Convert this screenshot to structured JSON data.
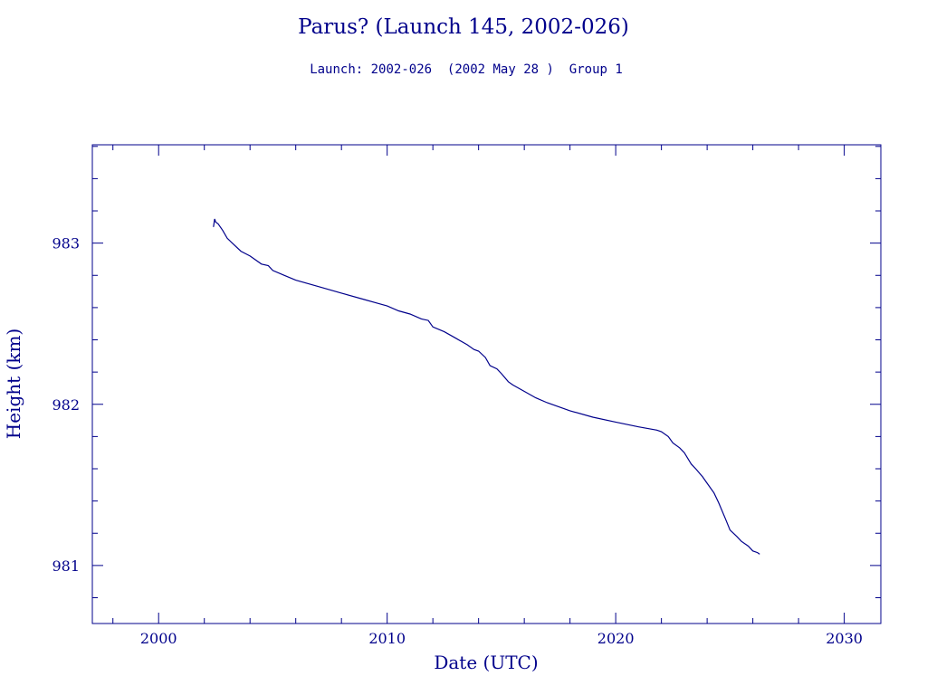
{
  "chart_data": {
    "type": "line",
    "title": "Parus? (Launch 145, 2002-026)",
    "subtitle": "Launch: 2002-026  (2002 May 28 )  Group 1",
    "xlabel": "Date (UTC)",
    "ylabel": "Height (km)",
    "xlim": [
      1997.1,
      2031.6
    ],
    "ylim": [
      980.64,
      983.61
    ],
    "x_ticks": [
      2000,
      2010,
      2020,
      2030
    ],
    "x_tick_labels": [
      "2000",
      "2010",
      "2020",
      "2030"
    ],
    "y_ticks": [
      981,
      982,
      983
    ],
    "y_tick_labels": [
      "981",
      "982",
      "983"
    ],
    "grid": false,
    "line_color": "#00008b",
    "series": [
      {
        "x": [
          2002.4,
          2002.45,
          2002.5,
          2002.6,
          2002.8,
          2003.0,
          2003.3,
          2003.6,
          2004.0,
          2004.5,
          2004.8,
          2005.0,
          2005.5,
          2006.0,
          2007.0,
          2008.0,
          2009.0,
          2009.5,
          2010.0,
          2010.5,
          2011.0,
          2011.5,
          2011.8,
          2012.0,
          2012.5,
          2013.0,
          2013.5,
          2013.8,
          2014.0,
          2014.3,
          2014.5,
          2014.8,
          2015.0,
          2015.3,
          2015.5,
          2016.0,
          2016.5,
          2017.0,
          2018.0,
          2019.0,
          2020.0,
          2021.0,
          2021.8,
          2022.0,
          2022.3,
          2022.5,
          2022.8,
          2023.0,
          2023.3,
          2023.5,
          2023.8,
          2024.0,
          2024.3,
          2024.5,
          2024.8,
          2025.0,
          2025.3,
          2025.5,
          2025.8,
          2026.0,
          2026.2,
          2026.3
        ],
        "y": [
          983.1,
          983.15,
          983.13,
          983.12,
          983.08,
          983.03,
          982.99,
          982.95,
          982.92,
          982.87,
          982.86,
          982.83,
          982.8,
          982.77,
          982.73,
          982.69,
          982.65,
          982.63,
          982.61,
          982.58,
          982.56,
          982.53,
          982.52,
          982.48,
          982.45,
          982.41,
          982.37,
          982.34,
          982.33,
          982.29,
          982.24,
          982.22,
          982.19,
          982.14,
          982.12,
          982.08,
          982.04,
          982.01,
          981.96,
          981.92,
          981.89,
          981.86,
          981.84,
          981.83,
          981.8,
          981.76,
          981.73,
          981.7,
          981.63,
          981.6,
          981.55,
          981.51,
          981.45,
          981.39,
          981.29,
          981.22,
          981.18,
          981.15,
          981.12,
          981.09,
          981.08,
          981.07
        ]
      }
    ]
  }
}
